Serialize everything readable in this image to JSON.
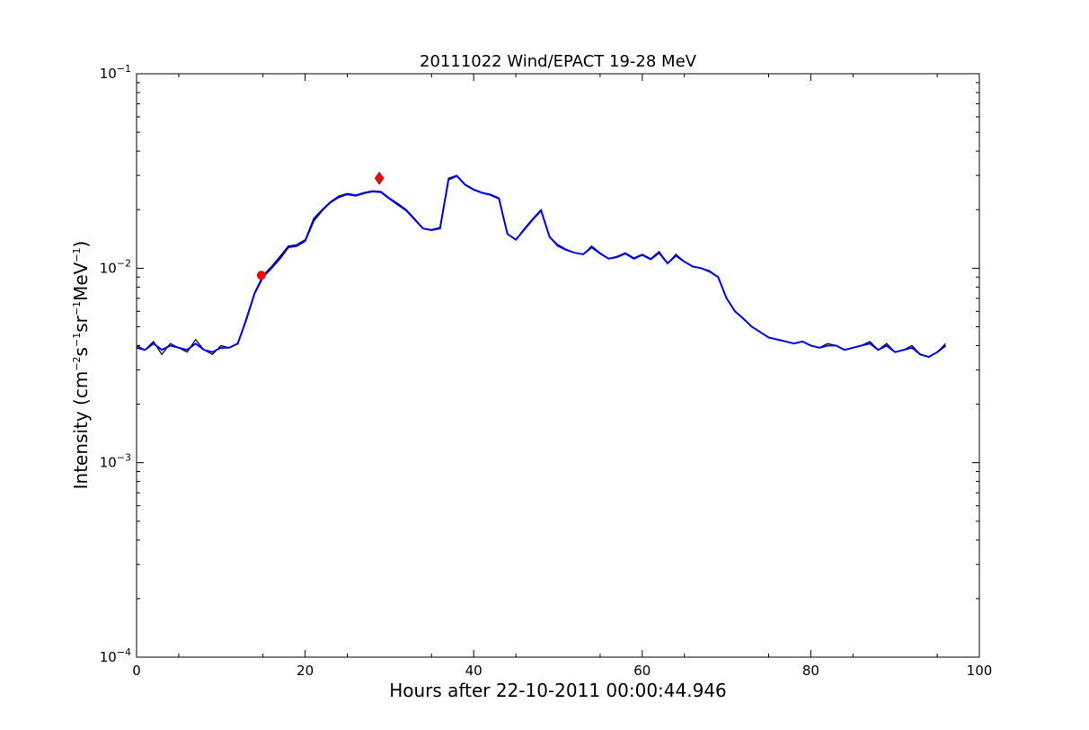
{
  "chart_data": {
    "type": "line",
    "title": "20111022 Wind/EPACT 19-28 MeV",
    "xlabel": "Hours after 22-10-2011 00:00:44.946",
    "ylabel": {
      "prefix": "Intensity (cm",
      "sup1": "−2",
      "part2": "s",
      "sup2": "−1",
      "part3": "sr",
      "sup3": "−1",
      "part4": "MeV",
      "sup4": "−1",
      "suffix": ")"
    },
    "xlim": [
      0,
      100
    ],
    "ylim": [
      0.0001,
      0.1
    ],
    "yscale": "log",
    "x_ticks": [
      "0",
      "20",
      "40",
      "60",
      "80",
      "100"
    ],
    "y_ticks": [
      {
        "base": "10",
        "exp": "−4"
      },
      {
        "base": "10",
        "exp": "−3"
      },
      {
        "base": "10",
        "exp": "−2"
      },
      {
        "base": "10",
        "exp": "−1"
      }
    ],
    "grid": false,
    "series": [
      {
        "kind": "raw",
        "color": "#000000",
        "x": [
          0,
          1,
          2,
          3,
          4,
          5,
          6,
          7,
          8,
          9,
          10,
          11,
          12,
          13,
          14,
          15,
          16,
          17,
          18,
          19,
          20,
          21,
          22,
          23,
          24,
          25,
          26,
          27,
          28,
          29,
          30,
          31,
          32,
          33,
          34,
          35,
          36,
          37,
          38,
          39,
          40,
          41,
          42,
          43,
          44,
          45,
          46,
          47,
          48,
          49,
          50,
          51,
          52,
          53,
          54,
          55,
          56,
          57,
          58,
          59,
          60,
          61,
          62,
          63,
          64,
          65,
          66,
          67,
          68,
          69,
          70,
          71,
          72,
          73,
          74,
          75,
          76,
          77,
          78,
          79,
          80,
          81,
          82,
          83,
          84,
          85,
          86,
          87,
          88,
          89,
          90,
          91,
          92,
          93,
          94,
          95,
          96
        ],
        "y": [
          0.004,
          0.0038,
          0.0042,
          0.0036,
          0.0041,
          0.0039,
          0.0037,
          0.0043,
          0.0038,
          0.0036,
          0.004,
          0.0039,
          0.0041,
          0.0055,
          0.0075,
          0.0092,
          0.0102,
          0.0115,
          0.013,
          0.0132,
          0.014,
          0.018,
          0.02,
          0.022,
          0.0235,
          0.0242,
          0.0238,
          0.0245,
          0.025,
          0.0248,
          0.023,
          0.0215,
          0.02,
          0.018,
          0.016,
          0.0158,
          0.0162,
          0.029,
          0.03,
          0.027,
          0.0255,
          0.0245,
          0.024,
          0.023,
          0.015,
          0.014,
          0.016,
          0.018,
          0.02,
          0.0145,
          0.0132,
          0.0125,
          0.012,
          0.0118,
          0.013,
          0.012,
          0.0112,
          0.0115,
          0.012,
          0.0113,
          0.0118,
          0.0112,
          0.0122,
          0.0106,
          0.0118,
          0.0108,
          0.0102,
          0.01,
          0.0097,
          0.009,
          0.007,
          0.006,
          0.0055,
          0.005,
          0.0047,
          0.0044,
          0.0043,
          0.0042,
          0.0041,
          0.0042,
          0.004,
          0.0039,
          0.0041,
          0.004,
          0.0038,
          0.0039,
          0.004,
          0.0042,
          0.0038,
          0.0041,
          0.0037,
          0.0038,
          0.004,
          0.0036,
          0.0035,
          0.0037,
          0.0041
        ]
      },
      {
        "kind": "smoothed",
        "color": "#0000ff",
        "x": [
          0,
          1,
          2,
          3,
          4,
          5,
          6,
          7,
          8,
          9,
          10,
          11,
          12,
          13,
          14,
          15,
          16,
          17,
          18,
          19,
          20,
          21,
          22,
          23,
          24,
          25,
          26,
          27,
          28,
          29,
          30,
          31,
          32,
          33,
          34,
          35,
          36,
          37,
          38,
          39,
          40,
          41,
          42,
          43,
          44,
          45,
          46,
          47,
          48,
          49,
          50,
          51,
          52,
          53,
          54,
          55,
          56,
          57,
          58,
          59,
          60,
          61,
          62,
          63,
          64,
          65,
          66,
          67,
          68,
          69,
          70,
          71,
          72,
          73,
          74,
          75,
          76,
          77,
          78,
          79,
          80,
          81,
          82,
          83,
          84,
          85,
          86,
          87,
          88,
          89,
          90,
          91,
          92,
          93,
          94,
          95,
          96
        ],
        "y": [
          0.0039,
          0.0038,
          0.0041,
          0.0038,
          0.004,
          0.0039,
          0.0038,
          0.0041,
          0.0038,
          0.0037,
          0.0039,
          0.0039,
          0.0041,
          0.0054,
          0.0074,
          0.009,
          0.01,
          0.0112,
          0.0128,
          0.013,
          0.0138,
          0.0175,
          0.0198,
          0.0218,
          0.0232,
          0.024,
          0.0236,
          0.0243,
          0.0248,
          0.0246,
          0.0228,
          0.0212,
          0.0198,
          0.0178,
          0.016,
          0.0157,
          0.016,
          0.0285,
          0.0298,
          0.0268,
          0.0253,
          0.0244,
          0.0238,
          0.0228,
          0.015,
          0.014,
          0.0158,
          0.0178,
          0.0198,
          0.0145,
          0.013,
          0.0124,
          0.012,
          0.0118,
          0.0128,
          0.0119,
          0.0112,
          0.0114,
          0.0119,
          0.0112,
          0.0117,
          0.0111,
          0.012,
          0.0106,
          0.0116,
          0.0108,
          0.0102,
          0.01,
          0.0096,
          0.009,
          0.007,
          0.006,
          0.0055,
          0.005,
          0.0047,
          0.0044,
          0.0043,
          0.0042,
          0.0041,
          0.0042,
          0.004,
          0.0039,
          0.004,
          0.004,
          0.0038,
          0.0039,
          0.004,
          0.0041,
          0.0038,
          0.004,
          0.0037,
          0.0038,
          0.0039,
          0.0036,
          0.0035,
          0.0037,
          0.004
        ]
      }
    ],
    "markers": [
      {
        "shape": "circle",
        "color": "#ff0000",
        "x": 14.8,
        "y": 0.0092
      },
      {
        "shape": "diamond",
        "color": "#ff0000",
        "x": 28.8,
        "y": 0.029
      }
    ]
  }
}
